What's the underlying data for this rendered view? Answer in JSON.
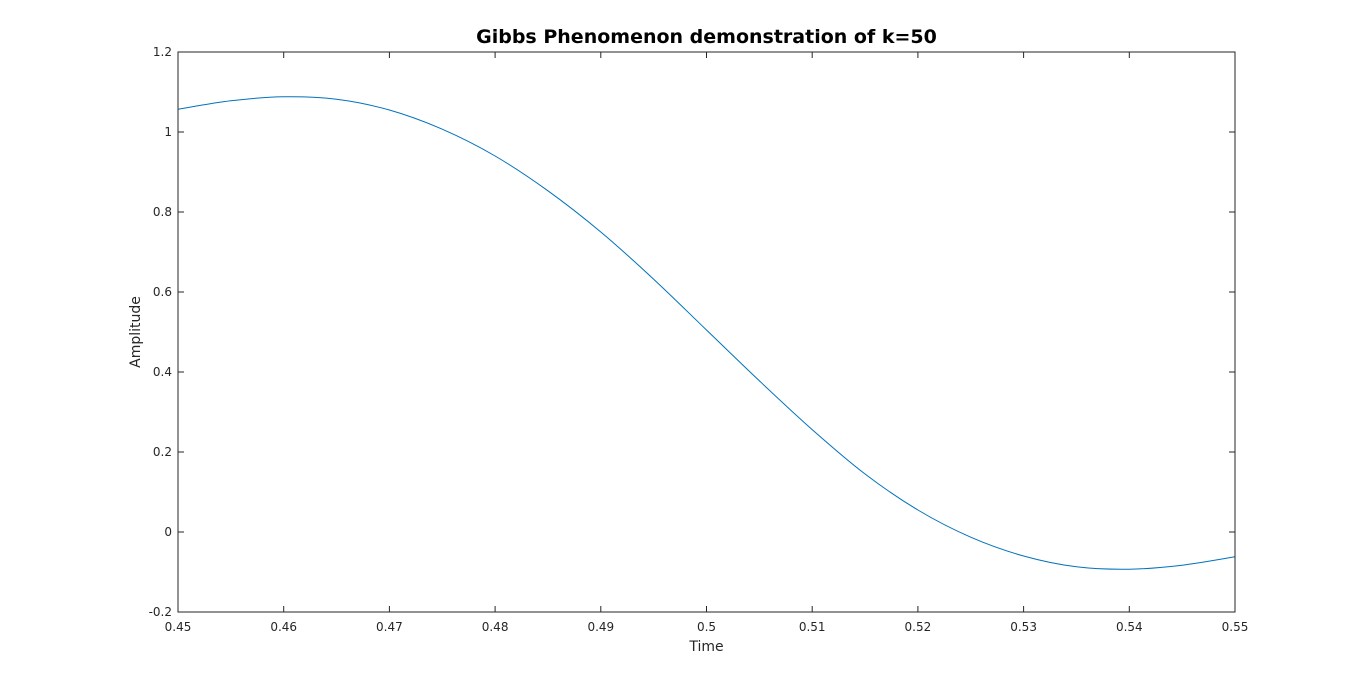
{
  "chart_data": {
    "type": "line",
    "title": "Gibbs Phenomenon demonstration of k=50",
    "xlabel": "Time",
    "ylabel": "Amplitude",
    "xlim": [
      0.45,
      0.55
    ],
    "ylim": [
      -0.2,
      1.2
    ],
    "xticks": [
      0.45,
      0.46,
      0.47,
      0.48,
      0.49,
      0.5,
      0.51,
      0.52,
      0.53,
      0.54,
      0.55
    ],
    "xtick_labels": [
      "0.45",
      "0.46",
      "0.47",
      "0.48",
      "0.49",
      "0.5",
      "0.51",
      "0.52",
      "0.53",
      "0.54",
      "0.55"
    ],
    "yticks": [
      -0.2,
      0,
      0.2,
      0.4,
      0.6,
      0.8,
      1,
      1.2
    ],
    "ytick_labels": [
      "-0.2",
      "0",
      "0.2",
      "0.4",
      "0.6",
      "0.8",
      "1",
      "1.2"
    ],
    "grid": false,
    "series": [
      {
        "color": "#0072bd",
        "x": [
          0.45,
          0.455,
          0.46,
          0.465,
          0.47,
          0.475,
          0.48,
          0.485,
          0.49,
          0.495,
          0.5,
          0.505,
          0.51,
          0.515,
          0.52,
          0.525,
          0.53,
          0.535,
          0.54,
          0.545,
          0.55
        ],
        "y": [
          1.057,
          1.078,
          1.088,
          1.082,
          1.055,
          1.007,
          0.94,
          0.853,
          0.75,
          0.632,
          0.505,
          0.378,
          0.256,
          0.145,
          0.055,
          -0.013,
          -0.06,
          -0.087,
          -0.093,
          -0.083,
          -0.062
        ]
      }
    ]
  }
}
